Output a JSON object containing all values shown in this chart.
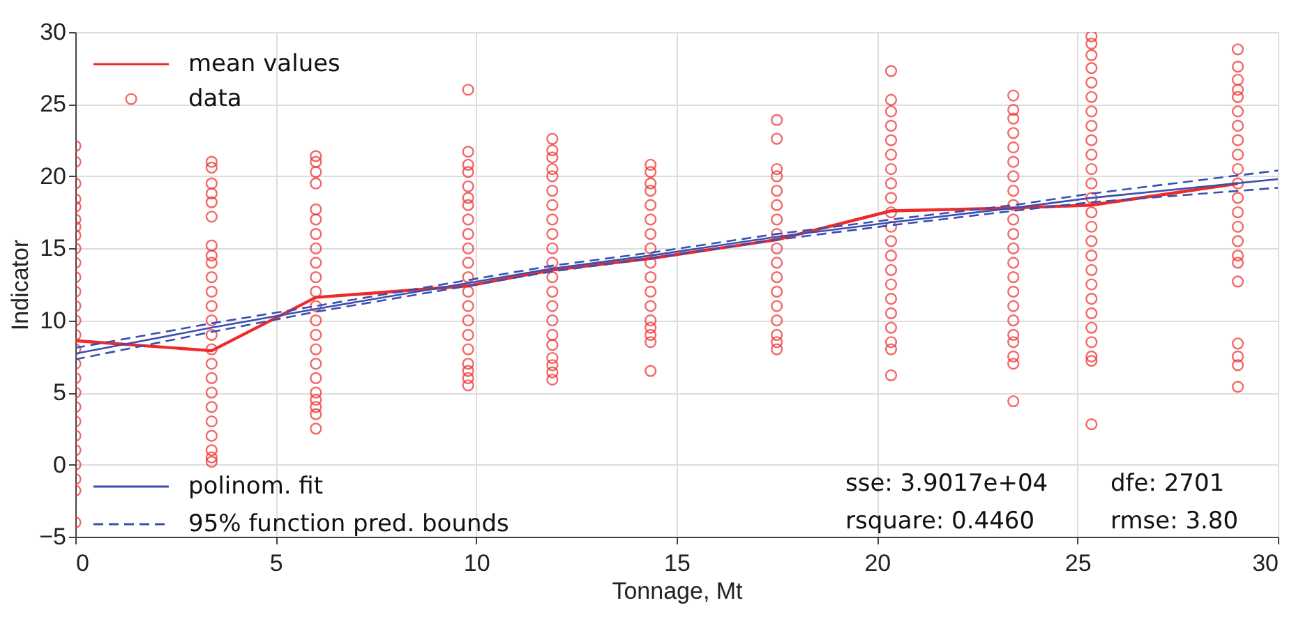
{
  "chart_data": {
    "type": "scatter",
    "xlabel": "Tonnage, Mt",
    "ylabel": "Indicator",
    "xlim": [
      0,
      30
    ],
    "xticks": [
      0,
      5,
      10,
      15,
      20,
      25,
      30
    ],
    "ylim": [
      -5,
      30
    ],
    "yticks": [
      -5,
      0,
      5,
      10,
      15,
      20,
      25,
      30
    ],
    "grid": true,
    "legend": "left",
    "annotations": [
      "sse: 3.9017e+04",
      "dfe: 2701",
      "rsquare: 0.4460",
      "rmse: 3.80"
    ],
    "series": [
      {
        "name": "mean values",
        "type": "line",
        "color": "#ee2a2a",
        "marker": "none",
        "line_style": "solid",
        "x": [
          0,
          3.4,
          6.0,
          9.8,
          11.9,
          14.35,
          17.5,
          20.35,
          23.4,
          25.35,
          29.0
        ],
        "values": [
          8.6,
          7.9,
          11.6,
          12.4,
          13.5,
          14.3,
          15.6,
          17.6,
          17.8,
          18.0,
          19.5
        ]
      },
      {
        "name": "data",
        "color": "#ee2a2a",
        "marker": "circle",
        "x": [
          0,
          0,
          0,
          0,
          0,
          0,
          0,
          0,
          0,
          0,
          0,
          0,
          0,
          0,
          0,
          0,
          0,
          0,
          0,
          0,
          0,
          0,
          0,
          0,
          0,
          0,
          0,
          3.4,
          3.4,
          3.4,
          3.4,
          3.4,
          3.4,
          3.4,
          3.4,
          3.4,
          3.4,
          3.4,
          3.4,
          3.4,
          3.4,
          3.4,
          3.4,
          3.4,
          3.4,
          3.4,
          3.4,
          3.4,
          3.4,
          3.4,
          3.4,
          6.0,
          6.0,
          6.0,
          6.0,
          6.0,
          6.0,
          6.0,
          6.0,
          6.0,
          6.0,
          6.0,
          6.0,
          6.0,
          6.0,
          6.0,
          6.0,
          6.0,
          6.0,
          6.0,
          6.0,
          6.0,
          6.0,
          9.8,
          9.8,
          9.8,
          9.8,
          9.8,
          9.8,
          9.8,
          9.8,
          9.8,
          9.8,
          9.8,
          9.8,
          9.8,
          9.8,
          9.8,
          9.8,
          9.8,
          9.8,
          9.8,
          9.8,
          9.8,
          11.9,
          11.9,
          11.9,
          11.9,
          11.9,
          11.9,
          11.9,
          11.9,
          11.9,
          11.9,
          11.9,
          11.9,
          11.9,
          11.9,
          11.9,
          11.9,
          11.9,
          11.9,
          11.9,
          11.9,
          11.9,
          14.35,
          14.35,
          14.35,
          14.35,
          14.35,
          14.35,
          14.35,
          14.35,
          14.35,
          14.35,
          14.35,
          14.35,
          14.35,
          14.35,
          14.35,
          14.35,
          14.35,
          17.5,
          17.5,
          17.5,
          17.5,
          17.5,
          17.5,
          17.5,
          17.5,
          17.5,
          17.5,
          17.5,
          17.5,
          17.5,
          17.5,
          17.5,
          17.5,
          17.5,
          20.35,
          20.35,
          20.35,
          20.35,
          20.35,
          20.35,
          20.35,
          20.35,
          20.35,
          20.35,
          20.35,
          20.35,
          20.35,
          20.35,
          20.35,
          20.35,
          20.35,
          20.35,
          20.35,
          20.35,
          20.35,
          23.4,
          23.4,
          23.4,
          23.4,
          23.4,
          23.4,
          23.4,
          23.4,
          23.4,
          23.4,
          23.4,
          23.4,
          23.4,
          23.4,
          23.4,
          23.4,
          23.4,
          23.4,
          23.4,
          23.4,
          23.4,
          23.4,
          25.35,
          25.35,
          25.35,
          25.35,
          25.35,
          25.35,
          25.35,
          25.35,
          25.35,
          25.35,
          25.35,
          25.35,
          25.35,
          25.35,
          25.35,
          25.35,
          25.35,
          25.35,
          25.35,
          25.35,
          25.35,
          25.35,
          25.35,
          25.35,
          25.35,
          25.35,
          29.0,
          29.0,
          29.0,
          29.0,
          29.0,
          29.0,
          29.0,
          29.0,
          29.0,
          29.0,
          29.0,
          29.0,
          29.0,
          29.0,
          29.0,
          29.0,
          29.0,
          29.0,
          29.0,
          29.0,
          29.0,
          29.0
        ],
        "values": [
          22.1,
          21.0,
          19.5,
          18.4,
          17.9,
          17.0,
          16.5,
          15.9,
          15,
          14,
          13,
          12,
          11,
          10,
          9,
          8,
          7,
          6,
          5,
          4,
          3,
          2,
          1,
          0,
          -1,
          -1.8,
          -4.0,
          21.0,
          20.6,
          19.5,
          18.8,
          18.2,
          17.2,
          15.2,
          14.5,
          14,
          13,
          12,
          11,
          10,
          9,
          8,
          7,
          6,
          5,
          4,
          3,
          2,
          1,
          0.5,
          0.2,
          21.4,
          21.0,
          20.3,
          19.5,
          17.7,
          17,
          16,
          15,
          14,
          13,
          12,
          11,
          10,
          9,
          8,
          7,
          6,
          5,
          4.5,
          4,
          3.5,
          2.5,
          26.0,
          21.7,
          20.8,
          20.3,
          19.3,
          18.5,
          18,
          17,
          16,
          15,
          14,
          13,
          12,
          11,
          10,
          9,
          8,
          7,
          6.5,
          6,
          5.5,
          22.6,
          21.8,
          21.3,
          20.5,
          20,
          19,
          18,
          17,
          16,
          15,
          14,
          13,
          12,
          11,
          10,
          9,
          8.3,
          7.4,
          6.9,
          6.4,
          5.9,
          20.8,
          20.3,
          19.5,
          19,
          18,
          17,
          16,
          15,
          14,
          13,
          12,
          11,
          10,
          9.5,
          9,
          8.5,
          6.5,
          23.9,
          22.6,
          20.5,
          20,
          19,
          18,
          17,
          16,
          15,
          14,
          13,
          12,
          11,
          10,
          9,
          8.5,
          8.0,
          27.3,
          25.3,
          24.5,
          23.5,
          22.5,
          21.5,
          20.5,
          19.5,
          18.5,
          17.5,
          16.5,
          15.5,
          14.5,
          13.5,
          12.5,
          11.5,
          10.5,
          9.5,
          8.5,
          8,
          6.2,
          25.6,
          24.6,
          24,
          23,
          22,
          21,
          20,
          19,
          18,
          17,
          16,
          15,
          14,
          13,
          12,
          11,
          10,
          9,
          8.5,
          7.5,
          7,
          4.4,
          29.7,
          29.2,
          28.4,
          27.5,
          26.5,
          25.5,
          24.5,
          23.5,
          22.5,
          21.5,
          20.5,
          19.5,
          18.5,
          17.5,
          16.5,
          15.5,
          14.5,
          13.5,
          12.5,
          11.5,
          10.5,
          9.5,
          8.5,
          7.5,
          7.2,
          2.8,
          28.8,
          27.6,
          26.7,
          26,
          25.5,
          24.5,
          23.5,
          22.5,
          21.5,
          20.5,
          19.5,
          18.5,
          17.5,
          16.5,
          15.5,
          14.5,
          14,
          12.7,
          8.4,
          7.5,
          6.9,
          5.4
        ]
      },
      {
        "name": "polinom. fit",
        "type": "line",
        "color": "#3a4fb0",
        "marker": "none",
        "line_style": "solid",
        "x": [
          0,
          3.4,
          6.0,
          9.8,
          11.9,
          14.35,
          17.5,
          20.35,
          23.4,
          25.35,
          30
        ],
        "values": [
          7.7,
          9.5,
          10.8,
          12.6,
          13.6,
          14.5,
          15.8,
          16.8,
          17.8,
          18.5,
          19.8
        ]
      },
      {
        "name": "95% function pred. bounds",
        "type": "line",
        "color": "#3a4fb0",
        "marker": "none",
        "line_style": "dashed",
        "x": [
          0,
          3.4,
          6.0,
          9.8,
          11.9,
          14.35,
          17.5,
          20.35,
          23.4,
          25.35,
          30
        ],
        "values": [
          8.1,
          9.8,
          11.0,
          12.8,
          13.8,
          14.7,
          16.0,
          17.0,
          18.0,
          18.8,
          20.4
        ]
      },
      {
        "type": "line",
        "color": "#3a4fb0",
        "marker": "none",
        "line_style": "dashed",
        "x": [
          0,
          3.4,
          6.0,
          9.8,
          11.9,
          14.35,
          17.5,
          20.35,
          23.4,
          25.35,
          30
        ],
        "values": [
          7.3,
          9.2,
          10.6,
          12.4,
          13.4,
          14.3,
          15.6,
          16.6,
          17.6,
          18.2,
          19.2
        ]
      }
    ]
  }
}
